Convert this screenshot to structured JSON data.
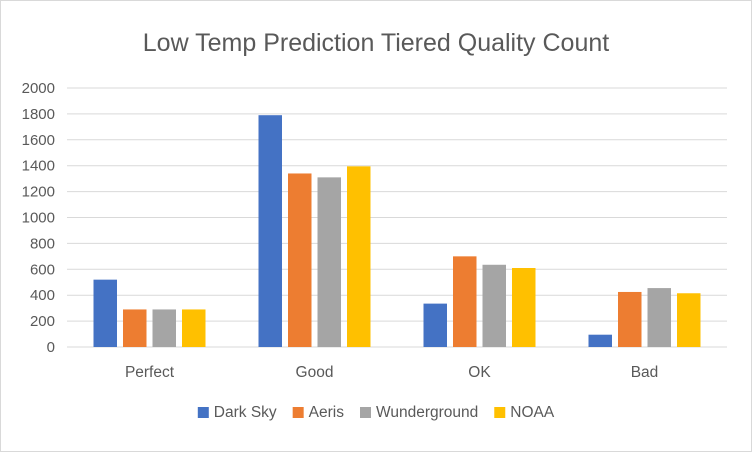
{
  "chart_data": {
    "type": "bar",
    "title": "Low Temp Prediction Tiered Quality Count",
    "categories": [
      "Perfect",
      "Good",
      "OK",
      "Bad"
    ],
    "series": [
      {
        "name": "Dark Sky",
        "color": "#4472c4",
        "values": [
          520,
          1790,
          335,
          95
        ]
      },
      {
        "name": "Aeris",
        "color": "#ed7d31",
        "values": [
          290,
          1340,
          700,
          425
        ]
      },
      {
        "name": "Wunderground",
        "color": "#a5a5a5",
        "values": [
          290,
          1310,
          635,
          455
        ]
      },
      {
        "name": "NOAA",
        "color": "#ffc000",
        "values": [
          290,
          1395,
          610,
          415
        ]
      }
    ],
    "ylim": [
      0,
      2000
    ],
    "yticks": [
      "0",
      "200",
      "400",
      "600",
      "800",
      "1000",
      "1200",
      "1400",
      "1600",
      "1800",
      "2000"
    ],
    "grid": true,
    "legend_position": "bottom"
  }
}
